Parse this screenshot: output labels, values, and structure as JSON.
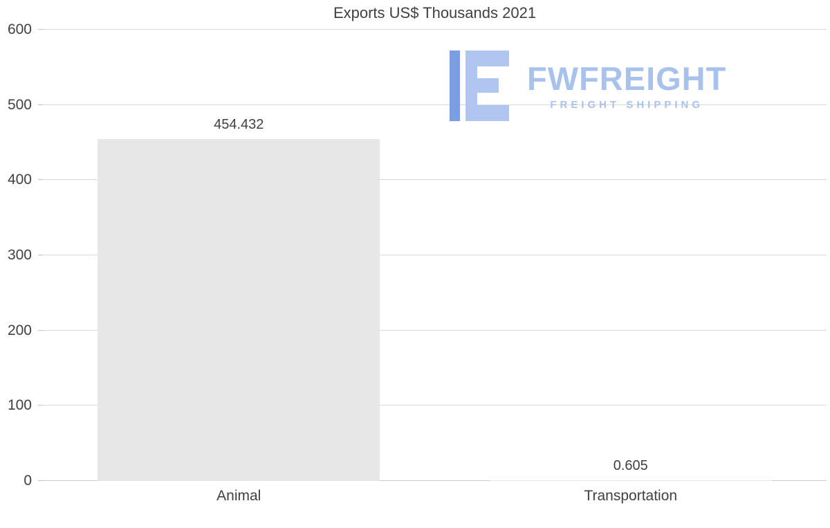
{
  "page": {
    "background": "#ffffff"
  },
  "chart_data": {
    "type": "bar",
    "title": "Exports US$ Thousands 2021",
    "categories": [
      "Animal",
      "Transportation"
    ],
    "values": [
      454.432,
      0.605
    ],
    "value_labels": [
      "454.432",
      "0.605"
    ],
    "ylim": [
      0,
      600
    ],
    "yticks": [
      600,
      500,
      400,
      300,
      200,
      100,
      0
    ],
    "grid": true,
    "legend_position": "none",
    "bar_color": "#e7e7e7",
    "grid_color": "#d9d9d9",
    "text_color": "#404040"
  },
  "logo": {
    "brand": "FWFREIGHT",
    "tagline": "FREIGHT SHIPPING",
    "brand_color": "#a9c2ec",
    "icon_dark_color": "#7b9de4",
    "icon_light_color": "#b0c6f1",
    "icon": "freight-logo-icon"
  }
}
